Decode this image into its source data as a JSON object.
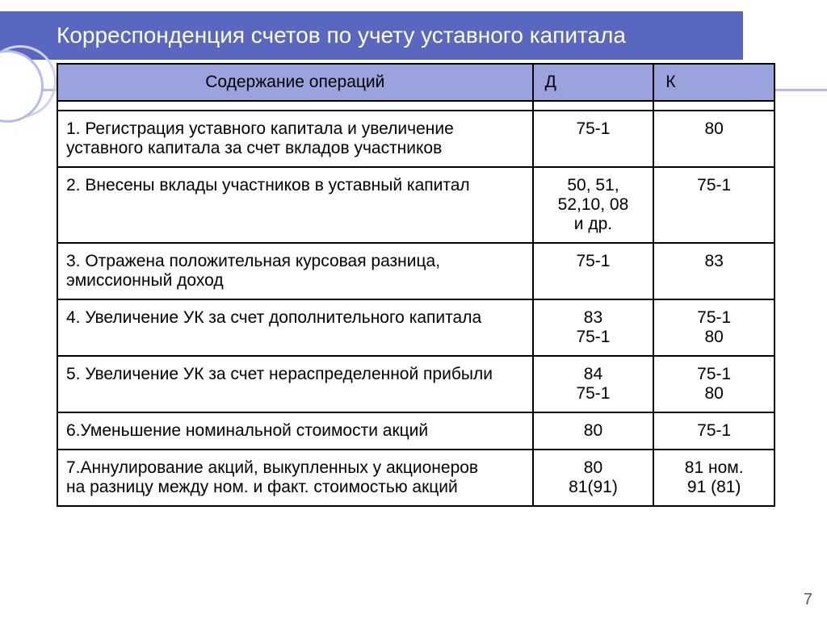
{
  "title": "Корреспонденция счетов по учету уставного капитала",
  "colors": {
    "title_bg": "#5a67c0",
    "header_bg": "#9aa3dd",
    "header_text": "#000000",
    "border": "#000000",
    "deco_ring": "#b5bde6"
  },
  "headers": {
    "main": "Содержание операций",
    "debit": "Д",
    "credit": "К"
  },
  "rows": [
    {
      "desc": "1. Регистрация уставного капитала и увеличение уставного капитала  за счет вкладов участников",
      "d": "75-1",
      "k": "80"
    },
    {
      "desc": "2. Внесены вклады участников в уставный капитал",
      "d": "50, 51,\n52,10, 08\nи др.",
      "k": "75-1"
    },
    {
      "desc": "3. Отражена положительная курсовая разница, эмиссионный доход",
      "d": "75-1",
      "k": "83"
    },
    {
      "desc": "4. Увеличение УК за счет дополнительного капитала",
      "d": "83\n75-1",
      "k": "75-1\n80"
    },
    {
      "desc": "5. Увеличение УК за счет нераспределенной прибыли",
      "d": "84\n75-1",
      "k": "75-1\n80"
    },
    {
      "desc": "6.Уменьшение номинальной стоимости акций",
      "d": "80",
      "k": "75-1"
    },
    {
      "desc": "7.Аннулирование акций, выкупленных у акционеров\nна разницу между ном. и факт. стоимостью акций",
      "d": "80\n81(91)",
      "k": "81 ном.\n91 (81)"
    }
  ],
  "page_number": "7"
}
